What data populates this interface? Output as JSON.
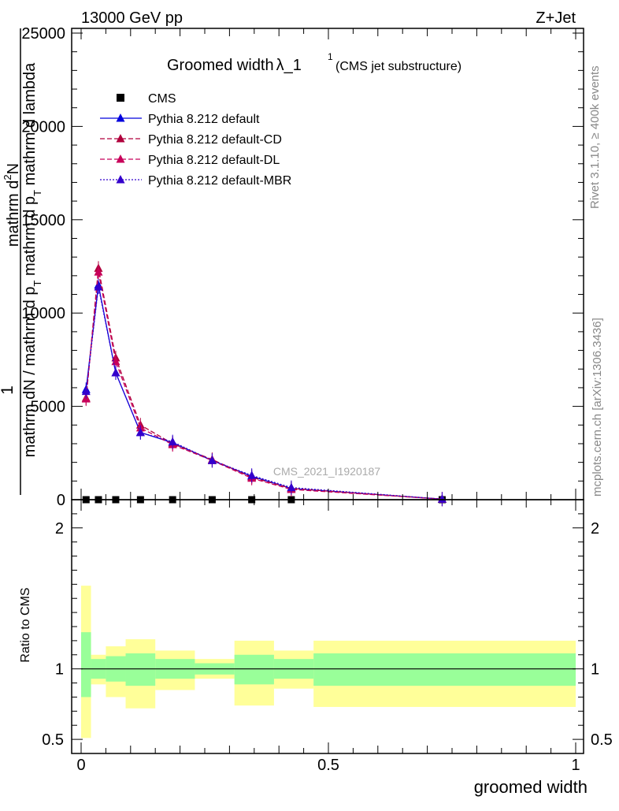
{
  "header": {
    "energy": "13000 GeV pp",
    "process": "Z+Jet"
  },
  "side": {
    "rivet": "Rivet 3.1.10, ≥ 400k events",
    "mcplots": "mcplots.cern.ch [arXiv:1306.3436]"
  },
  "chart_data": [
    {
      "type": "line",
      "title_main": "Groomed width",
      "title_symbol": "λ_1",
      "title_sup": "1",
      "title_sub": "(CMS jet substructure)",
      "watermark": "CMS_2021_I1920187",
      "xlim": [
        0,
        1
      ],
      "ylim": [
        0,
        25000
      ],
      "ylabel_num_1": "1",
      "ylabel_num_2": "mathrm d",
      "ylabel_num_3": "N",
      "ylabel_num_4": "2",
      "ylabel_den_1": "mathrm d",
      "ylabel_den_2": "N / mathrm d p",
      "ylabel_den_3": "T",
      "ylabel_den_4": " mathrm d p",
      "ylabel_den_5": "T",
      "ylabel_den_6": " mathrm d lambda",
      "x_ticks": [
        0,
        0.5,
        1
      ],
      "x_tick_labels": [
        "0",
        "0.5",
        "1"
      ],
      "y_ticks": [
        0,
        5000,
        10000,
        15000,
        20000,
        25000
      ],
      "y_tick_labels": [
        "0",
        "5000",
        "10000",
        "15000",
        "20000",
        "25000"
      ],
      "legend": [
        "CMS",
        "Pythia 8.212 default",
        "Pythia 8.212 default-CD",
        "Pythia 8.212 default-DL",
        "Pythia 8.212 default-MBR"
      ],
      "series": [
        {
          "name": "CMS",
          "style": "square",
          "color": "#000000",
          "x": [
            0.01,
            0.035,
            0.07,
            0.12,
            0.185,
            0.265,
            0.345,
            0.425,
            0.73
          ],
          "y": [
            0,
            0,
            0,
            0,
            0,
            0,
            0,
            0,
            0
          ]
        },
        {
          "name": "Pythia 8.212 default",
          "style": "solid",
          "color": "#0000dd",
          "x": [
            0.01,
            0.035,
            0.07,
            0.12,
            0.185,
            0.265,
            0.345,
            0.425,
            0.73
          ],
          "y": [
            5900,
            11500,
            6800,
            3600,
            3050,
            2100,
            1250,
            600,
            30
          ]
        },
        {
          "name": "Pythia 8.212 default-CD",
          "style": "dashed",
          "color": "#b0003c",
          "x": [
            0.01,
            0.035,
            0.07,
            0.12,
            0.185,
            0.265,
            0.345,
            0.425,
            0.73
          ],
          "y": [
            5450,
            12400,
            7600,
            4000,
            3000,
            2150,
            1200,
            600,
            30
          ]
        },
        {
          "name": "Pythia 8.212 default-DL",
          "style": "dashed",
          "color": "#c8005a",
          "x": [
            0.01,
            0.035,
            0.07,
            0.12,
            0.185,
            0.265,
            0.345,
            0.425,
            0.73
          ],
          "y": [
            5400,
            12200,
            7400,
            3850,
            2950,
            2100,
            1150,
            550,
            30
          ]
        },
        {
          "name": "Pythia 8.212 default-MBR",
          "style": "dotted",
          "color": "#3300cc",
          "x": [
            0.01,
            0.035,
            0.07,
            0.12,
            0.185,
            0.265,
            0.345,
            0.425,
            0.73
          ],
          "y": [
            5800,
            11400,
            6800,
            3600,
            3100,
            2100,
            1300,
            650,
            30
          ]
        }
      ]
    },
    {
      "type": "area",
      "ylabel": "Ratio to CMS",
      "xlabel": "groomed width",
      "xlim": [
        0,
        1
      ],
      "ylim": [
        0.4,
        2.2
      ],
      "x_ticks": [
        0,
        0.5,
        1
      ],
      "x_tick_labels": [
        "0",
        "0.5",
        "1"
      ],
      "y_ticks": [
        0.5,
        1,
        2
      ],
      "y_tick_labels": [
        "0.5",
        "1",
        "2"
      ],
      "reference_line": 1,
      "bands": [
        {
          "x_from": 0.0,
          "x_to": 0.02,
          "inner": [
            0.8,
            1.26
          ],
          "outer": [
            0.51,
            1.59
          ]
        },
        {
          "x_from": 0.02,
          "x_to": 0.05,
          "inner": [
            0.93,
            1.07
          ],
          "outer": [
            0.89,
            1.1
          ]
        },
        {
          "x_from": 0.05,
          "x_to": 0.09,
          "inner": [
            0.91,
            1.09
          ],
          "outer": [
            0.8,
            1.16
          ]
        },
        {
          "x_from": 0.09,
          "x_to": 0.15,
          "inner": [
            0.88,
            1.11
          ],
          "outer": [
            0.72,
            1.21
          ]
        },
        {
          "x_from": 0.15,
          "x_to": 0.23,
          "inner": [
            0.93,
            1.07
          ],
          "outer": [
            0.85,
            1.13
          ]
        },
        {
          "x_from": 0.23,
          "x_to": 0.31,
          "inner": [
            0.96,
            1.04
          ],
          "outer": [
            0.93,
            1.07
          ]
        },
        {
          "x_from": 0.31,
          "x_to": 0.39,
          "inner": [
            0.89,
            1.1
          ],
          "outer": [
            0.74,
            1.2
          ]
        },
        {
          "x_from": 0.39,
          "x_to": 0.47,
          "inner": [
            0.93,
            1.07
          ],
          "outer": [
            0.86,
            1.13
          ]
        },
        {
          "x_from": 0.47,
          "x_to": 1.0,
          "inner": [
            0.88,
            1.11
          ],
          "outer": [
            0.73,
            1.2
          ]
        }
      ],
      "inner_color": "#99ff99",
      "outer_color": "#ffff99"
    }
  ]
}
